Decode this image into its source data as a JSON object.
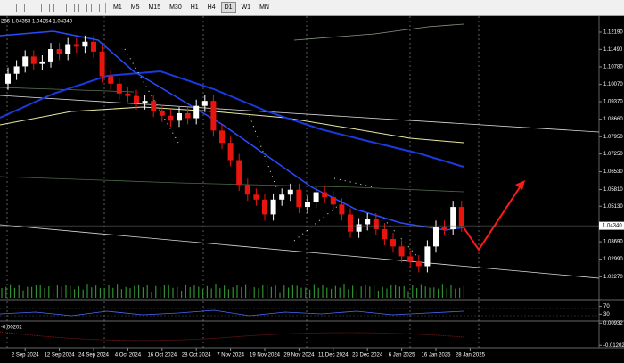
{
  "toolbar": {
    "timeframes": [
      "M1",
      "M5",
      "M15",
      "M30",
      "H1",
      "H4",
      "D1",
      "W1",
      "MN"
    ],
    "active": "D1"
  },
  "chart_data": {
    "type": "candlestick",
    "header": "286 1.04353 1.04254 1.04340",
    "up_color": "#ffffff",
    "down_color": "#e8150f",
    "open": [
      1.101,
      1.105,
      1.108,
      1.112,
      1.109,
      1.11,
      1.115,
      1.113,
      1.117,
      1.116,
      1.118,
      1.114,
      1.104,
      1.101,
      1.097,
      1.096,
      1.093,
      1.094,
      1.09,
      1.088,
      1.086,
      1.089,
      1.087,
      1.092,
      1.094,
      1.082,
      1.077,
      1.07,
      1.06,
      1.056,
      1.054,
      1.048,
      1.054,
      1.056,
      1.058,
      1.051,
      1.053,
      1.057,
      1.055,
      1.052,
      1.048,
      1.041,
      1.044,
      1.046,
      1.042,
      1.038,
      1.035,
      1.031,
      1.029,
      1.027,
      1.035,
      1.043,
      1.042,
      1.051
    ],
    "high": [
      1.1075,
      1.1105,
      1.1145,
      1.1145,
      1.1125,
      1.1175,
      1.1175,
      1.1195,
      1.1195,
      1.1205,
      1.1205,
      1.1165,
      1.1065,
      1.1035,
      1.0995,
      1.0985,
      1.0965,
      1.0965,
      1.0925,
      1.0905,
      1.0915,
      1.0915,
      1.0945,
      1.0965,
      1.0965,
      1.0845,
      1.0795,
      1.0725,
      1.0625,
      1.0585,
      1.0565,
      1.0565,
      1.0585,
      1.0605,
      1.0605,
      1.0555,
      1.0595,
      1.0595,
      1.0575,
      1.0545,
      1.0505,
      1.0465,
      1.0485,
      1.0485,
      1.0445,
      1.0405,
      1.0375,
      1.0335,
      1.0315,
      1.0375,
      1.0455,
      1.0455,
      1.0535,
      1.0535
    ],
    "low": [
      1.0985,
      1.1025,
      1.1055,
      1.1065,
      1.1065,
      1.1075,
      1.1105,
      1.1105,
      1.1135,
      1.1135,
      1.1115,
      1.1015,
      1.0985,
      1.0945,
      1.0935,
      1.0905,
      1.0905,
      1.0875,
      1.0855,
      1.0835,
      1.0835,
      1.0845,
      1.0845,
      1.0895,
      1.0795,
      1.0745,
      1.0675,
      1.0575,
      1.0535,
      1.0515,
      1.0455,
      1.0455,
      1.0515,
      1.0535,
      1.0485,
      1.0485,
      1.0505,
      1.0525,
      1.0495,
      1.0455,
      1.0385,
      1.0385,
      1.0415,
      1.0395,
      1.0355,
      1.0325,
      1.0285,
      1.0265,
      1.0245,
      1.0245,
      1.0325,
      1.0395,
      1.0395,
      1.0409
    ],
    "close": [
      1.105,
      1.108,
      1.112,
      1.109,
      1.11,
      1.115,
      1.113,
      1.117,
      1.116,
      1.118,
      1.114,
      1.104,
      1.101,
      1.097,
      1.096,
      1.093,
      1.094,
      1.09,
      1.088,
      1.086,
      1.089,
      1.087,
      1.092,
      1.094,
      1.082,
      1.077,
      1.07,
      1.06,
      1.056,
      1.054,
      1.048,
      1.054,
      1.056,
      1.058,
      1.051,
      1.053,
      1.057,
      1.055,
      1.052,
      1.048,
      1.041,
      1.044,
      1.046,
      1.042,
      1.038,
      1.035,
      1.031,
      1.029,
      1.027,
      1.035,
      1.043,
      1.042,
      1.051,
      1.0434
    ],
    "ylim": [
      1.0138,
      1.1284
    ],
    "yticks": [
      {
        "value": 1.1219,
        "label": "1.12190"
      },
      {
        "value": 1.1149,
        "label": "1.11490"
      },
      {
        "value": 1.1078,
        "label": "1.10780"
      },
      {
        "value": 1.1007,
        "label": "1.10070"
      },
      {
        "value": 1.0937,
        "label": "1.09370"
      },
      {
        "value": 1.0866,
        "label": "1.08660"
      },
      {
        "value": 1.0795,
        "label": "1.07950"
      },
      {
        "value": 1.0725,
        "label": "1.07250"
      },
      {
        "value": 1.0653,
        "label": "1.06530"
      },
      {
        "value": 1.0581,
        "label": "1.05810"
      },
      {
        "value": 1.0513,
        "label": "1.05130"
      },
      {
        "value": 1.0369,
        "label": "1.03690"
      },
      {
        "value": 1.0299,
        "label": "1.02990"
      },
      {
        "value": 1.0227,
        "label": "1.02270"
      }
    ],
    "last_price": {
      "value": 1.0434,
      "label": "1.04340"
    },
    "xticks": [
      {
        "value": 2,
        "label": "2 Sep 2024"
      },
      {
        "value": 6,
        "label": "12 Sep 2024"
      },
      {
        "value": 10,
        "label": "24 Sep 2024"
      },
      {
        "value": 14,
        "label": "4 Oct 2024"
      },
      {
        "value": 18,
        "label": "16 Oct 2024"
      },
      {
        "value": 22,
        "label": "28 Oct 2024"
      },
      {
        "value": 26,
        "label": "7 Nov 2024"
      },
      {
        "value": 30,
        "label": "19 Nov 2024"
      },
      {
        "value": 34,
        "label": "29 Nov 2024"
      },
      {
        "value": 38,
        "label": "11 Dec 2024"
      },
      {
        "value": 42,
        "label": "23 Dec 2024"
      },
      {
        "value": 46,
        "label": "6 Jan 2025"
      },
      {
        "value": 50,
        "label": "16 Jan 2025"
      },
      {
        "value": 54,
        "label": "28 Jan 2025"
      }
    ]
  },
  "panels": [
    {
      "ylim": [
        0,
        100
      ],
      "yticks": [
        70,
        30
      ]
    },
    {
      "header": -0.00202,
      "ylim": [
        -0.0135,
        0.0105
      ],
      "yticks": [
        0.00932,
        -0.01202
      ]
    }
  ]
}
